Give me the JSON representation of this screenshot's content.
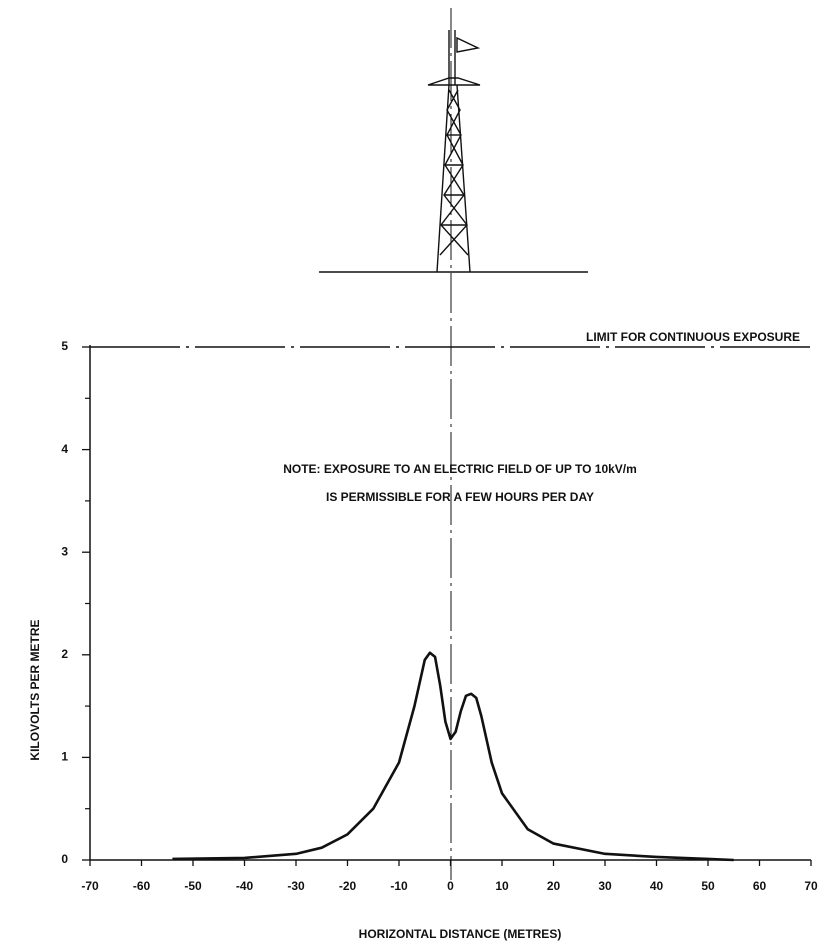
{
  "chart_data": {
    "type": "line",
    "x_label": "HORIZONTAL DISTANCE (METRES)",
    "y_label": "KILOVOLTS PER METRE",
    "xlim": [
      -70,
      70
    ],
    "xticks": [
      -70,
      -60,
      -50,
      -40,
      -30,
      -20,
      -10,
      0,
      10,
      20,
      30,
      40,
      50,
      60,
      70
    ],
    "ylim": [
      0,
      5
    ],
    "yticks": [
      0,
      1,
      2,
      3,
      4,
      5
    ],
    "yminor_ticks": [
      0.5,
      1.5,
      2.5,
      3.5,
      4.5
    ],
    "limit_line": {
      "value": 5,
      "label": "LIMIT FOR CONTINUOUS EXPOSURE"
    },
    "annotations": [
      "NOTE: EXPOSURE TO AN ELECTRIC FIELD OF UP TO 10kV/m",
      "IS PERMISSIBLE FOR A FEW HOURS PER DAY"
    ],
    "series": [
      {
        "color": "#111111",
        "x": [
          -54,
          -40,
          -30,
          -25,
          -20,
          -15,
          -10,
          -7,
          -5,
          -4,
          -3,
          -2,
          -1,
          0,
          1,
          2,
          3,
          4,
          5,
          6,
          8,
          10,
          15,
          20,
          30,
          40,
          50,
          55
        ],
        "values": [
          0.01,
          0.02,
          0.06,
          0.12,
          0.25,
          0.5,
          0.95,
          1.5,
          1.95,
          2.02,
          1.98,
          1.7,
          1.35,
          1.18,
          1.25,
          1.45,
          1.6,
          1.62,
          1.58,
          1.4,
          0.95,
          0.65,
          0.3,
          0.16,
          0.06,
          0.03,
          0.01,
          0
        ]
      }
    ]
  }
}
